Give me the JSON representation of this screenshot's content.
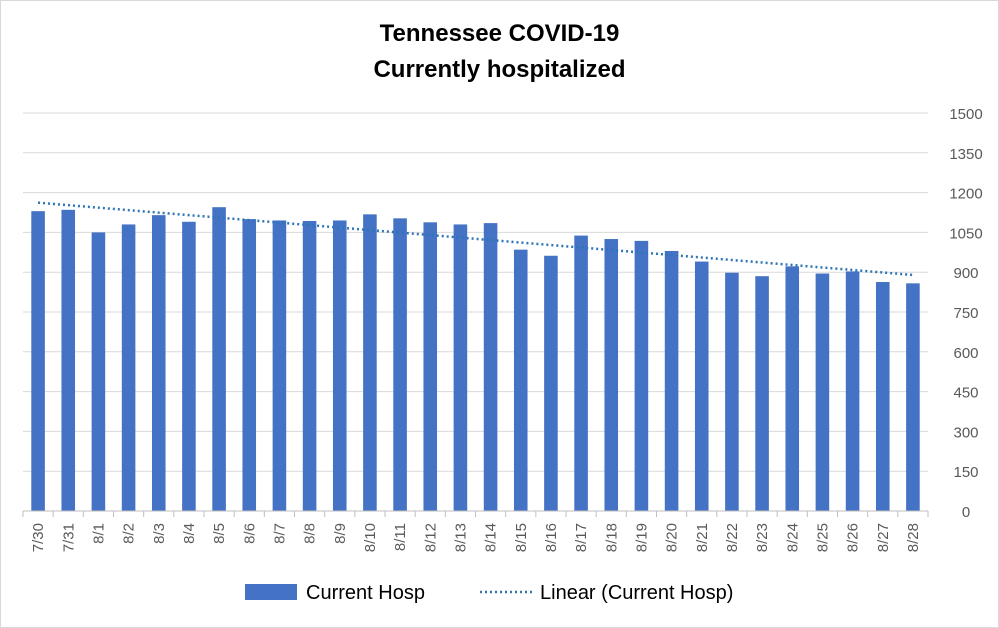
{
  "chart_data": {
    "type": "bar",
    "title": [
      "Tennessee COVID-19",
      "Currently hospitalized"
    ],
    "categories": [
      "7/30",
      "7/31",
      "8/1",
      "8/2",
      "8/3",
      "8/4",
      "8/5",
      "8/6",
      "8/7",
      "8/8",
      "8/9",
      "8/10",
      "8/11",
      "8/12",
      "8/13",
      "8/14",
      "8/15",
      "8/16",
      "8/17",
      "8/18",
      "8/19",
      "8/20",
      "8/21",
      "8/22",
      "8/23",
      "8/24",
      "8/25",
      "8/26",
      "8/27",
      "8/28"
    ],
    "series": [
      {
        "name": "Current Hosp",
        "color": "#4472c4",
        "values": [
          1130,
          1135,
          1050,
          1080,
          1115,
          1090,
          1145,
          1100,
          1095,
          1093,
          1095,
          1118,
          1103,
          1088,
          1080,
          1085,
          985,
          962,
          1038,
          1025,
          1018,
          980,
          940,
          898,
          885,
          922,
          895,
          903,
          863,
          858
        ]
      }
    ],
    "trendline": {
      "name": "Linear (Current Hosp)",
      "type": "linear",
      "color": "#2e75b6",
      "style": "dotted"
    },
    "ylim": [
      0,
      1500
    ],
    "yticks": [
      0,
      150,
      300,
      450,
      600,
      750,
      900,
      1050,
      1200,
      1350,
      1500
    ],
    "y_axis_side": "right",
    "grid": true,
    "legend_position": "bottom"
  }
}
